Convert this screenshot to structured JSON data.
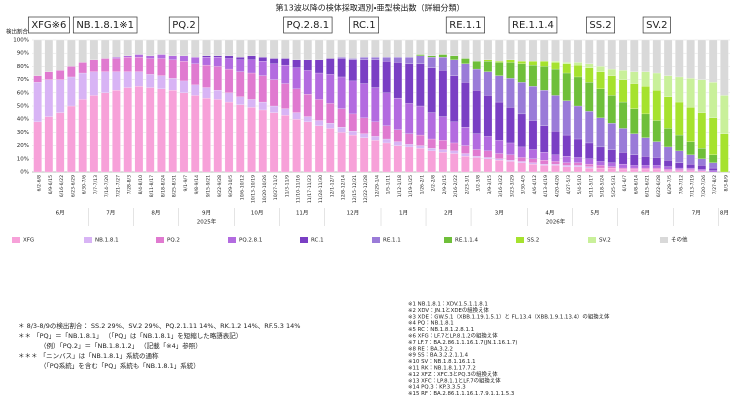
{
  "chart_data": {
    "type": "stacked-bar",
    "title": "第13波以降の検体採取週別・亜型検出数（詳細分類）",
    "y_label": "検出割合",
    "categories": [
      "6/2-6/8",
      "6/9-6/15",
      "6/16-6/22",
      "6/23-6/29",
      "6/30-7/6",
      "7/7-7/13",
      "7/14-7/20",
      "7/21-7/27",
      "7/28-8/3",
      "8/4-8/10",
      "8/11-8/17",
      "8/18-8/24",
      "8/25-8/31",
      "9/1-9/7",
      "9/8-9/14",
      "9/15-9/21",
      "9/22-9/28",
      "9/29-10/5",
      "10/6-10/12",
      "10/13-10/19",
      "10/20-10/26",
      "10/27-11/2",
      "11/3-11/9",
      "11/10-11/16",
      "11/17-11/23",
      "11/24-11/30",
      "12/1-12/7",
      "12/8-12/14",
      "12/15-12/21",
      "12/22-12/28",
      "12/29-1/4",
      "1/5-1/11",
      "1/12-1/18",
      "1/19-1/25",
      "1/26-2/1",
      "2/2-2/8",
      "2/9-2/15",
      "2/16-2/22",
      "2/23-3/1",
      "3/2-3/8",
      "3/9-3/15",
      "3/16-3/22",
      "3/23-3/29",
      "3/30-4/5",
      "4/6-4/12",
      "4/13-4/19",
      "4/20-4/26",
      "4/27-5/3",
      "5/4-5/10",
      "5/11-5/17",
      "5/18-5/24",
      "5/25-5/31",
      "6/1-6/7",
      "6/8-6/14",
      "6/15-6/21",
      "6/22-6/28",
      "6/29-7/5",
      "7/6-7/12",
      "7/13-7/19",
      "7/20-7/26",
      "7/27-8/2",
      "8/3-8/9"
    ],
    "months": [
      "6月",
      "7月",
      "8月",
      "9月",
      "10月",
      "11月",
      "12月",
      "1月",
      "2月",
      "3月",
      "4月",
      "5月",
      "6月",
      "7月",
      "8月"
    ],
    "years": [
      "2025年",
      "2026年"
    ],
    "ylim": [
      0,
      100
    ],
    "yticks": [
      {
        "value": 0,
        "label": "0%"
      },
      {
        "value": 10,
        "label": "10%"
      },
      {
        "value": 20,
        "label": "20%"
      },
      {
        "value": 30,
        "label": "30%"
      },
      {
        "value": 40,
        "label": "40%"
      },
      {
        "value": 50,
        "label": "50%"
      },
      {
        "value": 60,
        "label": "60%"
      },
      {
        "value": 70,
        "label": "70%"
      },
      {
        "value": 80,
        "label": "80%"
      },
      {
        "value": 90,
        "label": "90%"
      },
      {
        "value": 100,
        "label": "100%"
      }
    ],
    "grid": true,
    "series": [
      {
        "name": "XFG",
        "color": "#f7a1d9",
        "values": [
          38,
          42,
          45,
          50,
          55,
          58,
          60,
          62,
          64,
          65,
          64,
          63,
          62,
          60,
          58,
          56,
          55,
          53,
          51,
          49,
          47,
          45,
          43,
          40,
          38,
          35,
          33,
          30,
          28,
          26,
          24,
          22,
          20,
          19,
          18,
          16,
          15,
          14,
          12,
          11,
          10,
          9,
          8,
          7,
          6,
          5,
          5,
          4,
          4,
          3,
          3,
          3,
          2,
          2,
          2,
          2,
          1,
          1,
          1,
          1,
          0,
          0
        ]
      },
      {
        "name": "NB.1.8.1",
        "color": "#d8b4f5",
        "values": [
          30,
          28,
          25,
          22,
          20,
          18,
          16,
          14,
          12,
          11,
          10,
          10,
          9,
          9,
          8,
          8,
          7,
          7,
          6,
          6,
          6,
          5,
          5,
          5,
          4,
          4,
          4,
          4,
          3,
          3,
          3,
          3,
          3,
          2,
          2,
          2,
          2,
          2,
          2,
          1,
          1,
          1,
          1,
          1,
          1,
          1,
          1,
          1,
          1,
          1,
          0,
          0,
          0,
          0,
          0,
          0,
          0,
          0,
          0,
          0,
          0,
          0
        ]
      },
      {
        "name": "PQ.2",
        "color": "#e07ad0",
        "values": [
          5,
          6,
          7,
          8,
          8,
          9,
          10,
          10,
          11,
          11,
          12,
          13,
          14,
          15,
          16,
          17,
          18,
          18,
          19,
          20,
          20,
          20,
          19,
          18,
          17,
          16,
          15,
          14,
          13,
          12,
          11,
          10,
          9,
          8,
          8,
          7,
          7,
          6,
          6,
          5,
          5,
          4,
          4,
          3,
          3,
          3,
          2,
          2,
          2,
          2,
          2,
          1,
          1,
          1,
          1,
          1,
          1,
          1,
          1,
          0,
          0,
          0
        ]
      },
      {
        "name": "PQ.2.8.1",
        "color": "#b36be0",
        "values": [
          0,
          0,
          0,
          0,
          0,
          0,
          0,
          1,
          1,
          2,
          2,
          3,
          3,
          4,
          5,
          6,
          7,
          8,
          9,
          10,
          11,
          12,
          14,
          16,
          18,
          20,
          22,
          24,
          25,
          26,
          26,
          25,
          24,
          23,
          22,
          20,
          18,
          16,
          14,
          12,
          11,
          10,
          9,
          8,
          7,
          6,
          5,
          5,
          4,
          4,
          3,
          3,
          3,
          2,
          2,
          2,
          2,
          1,
          1,
          1,
          1,
          0
        ]
      },
      {
        "name": "RC.1",
        "color": "#7a3fc4",
        "values": [
          0,
          0,
          0,
          0,
          0,
          0,
          0,
          0,
          0,
          0,
          0,
          0,
          0,
          0,
          0,
          1,
          1,
          2,
          2,
          3,
          3,
          4,
          5,
          6,
          8,
          10,
          12,
          14,
          16,
          18,
          21,
          24,
          27,
          30,
          32,
          34,
          35,
          35,
          34,
          33,
          31,
          29,
          27,
          25,
          22,
          20,
          18,
          16,
          14,
          12,
          11,
          10,
          9,
          8,
          7,
          6,
          5,
          4,
          3,
          3,
          2,
          0
        ]
      },
      {
        "name": "RE.1.1",
        "color": "#9a7bd8",
        "values": [
          0,
          0,
          0,
          0,
          0,
          0,
          0,
          0,
          0,
          0,
          0,
          0,
          0,
          0,
          0,
          0,
          0,
          0,
          0,
          0,
          0,
          0,
          0,
          0,
          0,
          0,
          0,
          1,
          1,
          2,
          2,
          3,
          4,
          5,
          6,
          8,
          10,
          12,
          14,
          16,
          18,
          20,
          22,
          24,
          26,
          27,
          27,
          26,
          25,
          24,
          22,
          20,
          18,
          16,
          14,
          12,
          10,
          9,
          7,
          5,
          4,
          0
        ]
      },
      {
        "name": "RE.1.1.4",
        "color": "#6fbf3a",
        "values": [
          0,
          0,
          0,
          0,
          0,
          0,
          0,
          0,
          0,
          0,
          0,
          0,
          0,
          0,
          0,
          0,
          0,
          0,
          0,
          0,
          0,
          0,
          0,
          0,
          0,
          0,
          0,
          0,
          0,
          0,
          0,
          0,
          0,
          0,
          1,
          1,
          2,
          3,
          4,
          6,
          8,
          10,
          12,
          14,
          16,
          18,
          20,
          21,
          22,
          22,
          22,
          21,
          20,
          19,
          18,
          16,
          14,
          12,
          10,
          8,
          6,
          0
        ]
      },
      {
        "name": "SS.2",
        "color": "#a6e22e",
        "values": [
          0,
          0,
          0,
          0,
          0,
          0,
          0,
          0,
          0,
          0,
          0,
          0,
          0,
          0,
          0,
          0,
          0,
          0,
          0,
          0,
          0,
          0,
          0,
          0,
          0,
          0,
          0,
          0,
          0,
          0,
          0,
          0,
          0,
          0,
          0,
          0,
          0,
          0,
          0,
          0,
          1,
          1,
          2,
          2,
          3,
          4,
          5,
          7,
          9,
          11,
          13,
          15,
          17,
          19,
          21,
          23,
          24,
          25,
          26,
          27,
          28,
          29
        ]
      },
      {
        "name": "SV.2",
        "color": "#c9f09a",
        "values": [
          0,
          0,
          0,
          0,
          0,
          0,
          0,
          0,
          0,
          0,
          0,
          0,
          0,
          0,
          0,
          0,
          0,
          0,
          0,
          0,
          0,
          0,
          0,
          0,
          0,
          0,
          0,
          0,
          0,
          0,
          0,
          0,
          0,
          0,
          0,
          0,
          0,
          0,
          0,
          0,
          0,
          0,
          0,
          0,
          0,
          0,
          1,
          1,
          2,
          3,
          4,
          5,
          7,
          9,
          11,
          13,
          16,
          19,
          22,
          25,
          27,
          29
        ]
      },
      {
        "name": "その他",
        "color": "#d9d9d9",
        "values": [
          27,
          24,
          23,
          20,
          17,
          15,
          14,
          13,
          12,
          11,
          12,
          11,
          12,
          12,
          13,
          12,
          12,
          12,
          13,
          12,
          13,
          14,
          14,
          15,
          15,
          15,
          14,
          13,
          14,
          13,
          13,
          13,
          13,
          13,
          11,
          12,
          11,
          12,
          14,
          16,
          15,
          16,
          15,
          16,
          16,
          16,
          16,
          17,
          17,
          18,
          20,
          22,
          23,
          24,
          24,
          25,
          27,
          28,
          29,
          30,
          32,
          42
        ]
      }
    ],
    "annotations": [
      "XFG※6",
      "NB.1.8.1※1",
      "PQ.2",
      "PQ.2.8.1",
      "RC.1",
      "RE.1.1",
      "RE.1.1.4",
      "SS.2",
      "SV.2"
    ]
  },
  "notes_left": [
    "＊ 8/3-8/9の検出割合： SS.2 29%、SV.2 29%、PQ.2.1.11 14%、RK.1.2 14%、RF.5.3 14%",
    "＊＊ 「PQ」＝「NB.1.8.1」 （「PQ」は「NB.1.8.1」を短縮した略語表記）",
    "（例）「PQ.2」＝「NB.1.8.1.2」 （記載「※4」参照）",
    "＊＊＊ 「ニンバス」は「NB.1.8.1」系統の通称",
    "（「PQ系統」を含む「PQ」系統も「NB.1.8.1」系統）"
  ],
  "notes_right": [
    "※1 NB.1.8.1：XDV.1.5.1.1.8.1",
    "※2 XDV：JN.1とXDEの組換え体",
    "※3 XDE：GW.5.1（XBB.1.19.1.5.1）と FL.13.4（XBB.1.9.1.13.4）の組換え体",
    "※4 PQ：NB.1.8.1",
    "※5 RC：NB.1.8.1.2.8.1.1",
    "※6 XFG：LF.7とLP.8.1.2の組換え体",
    "※7 LF.7：BA.2.86.1.1.16.1.7(JN.1.16.1.7)",
    "※8 RE：BA.3.2.2",
    "※9 SS：BA.3.2.2.1.1.4",
    "※10 SV：NB.1.8.1.16.1.1",
    "※11 RK：NB.1.8.1.17.7.2",
    "※12 XFZ：XFC.3とPQ.3の組換え体",
    "※13 XFC：LP.8.1.1とLF.7の組換え体",
    "※14 PQ.3：KP.3.3.5.3",
    "※15 RF：BA.2.86.1.1.16.1.7.9.1.1.1.5.3"
  ]
}
